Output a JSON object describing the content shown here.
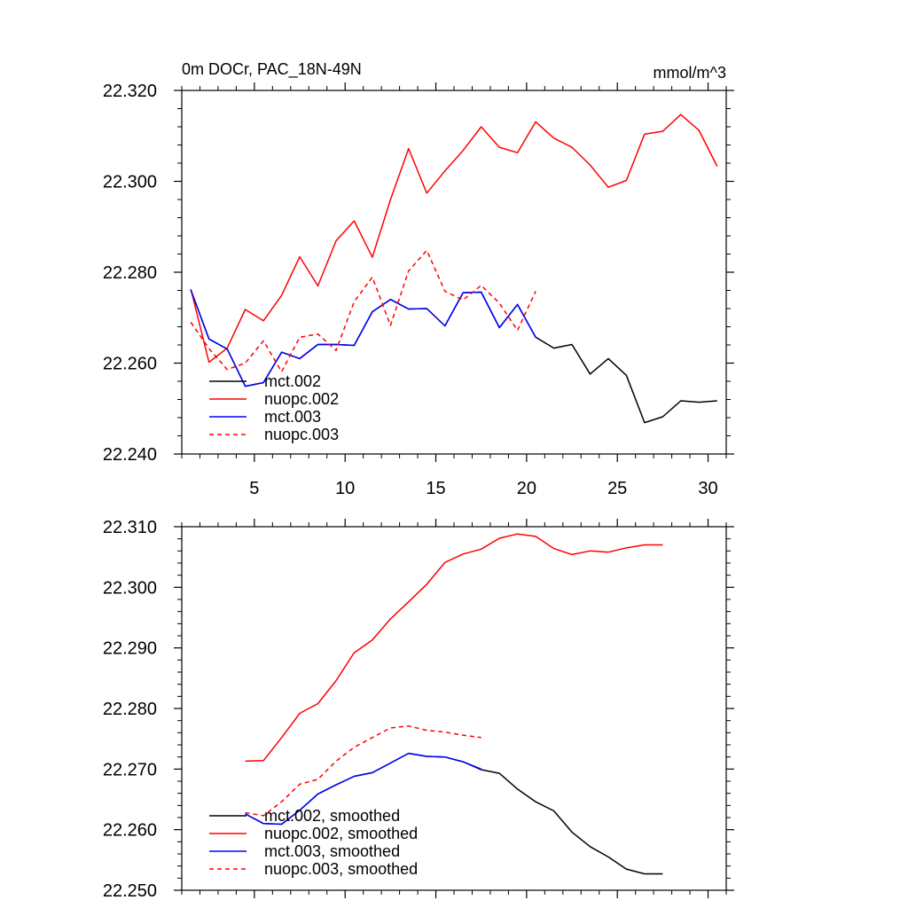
{
  "chart_data": [
    {
      "type": "line",
      "title": "0m DOCr, PAC_18N-49N",
      "units": "mmol/m^3",
      "xlim": [
        1,
        31
      ],
      "ylim": [
        22.24,
        22.32
      ],
      "xticks": [
        "5",
        "10",
        "15",
        "20",
        "25",
        "30"
      ],
      "yticks": [
        "22.240",
        "22.260",
        "22.280",
        "22.300",
        "22.320"
      ],
      "legend_position": "bottom-left",
      "series": [
        {
          "name": "mct.002",
          "color": "#000000",
          "dash": "solid",
          "x": [
            1.5,
            2.5,
            3.5,
            4.5,
            5.5,
            6.5,
            7.5,
            8.5,
            9.5,
            10.5,
            11.5,
            12.5,
            13.5,
            14.5,
            15.5,
            16.5,
            17.5,
            18.5,
            19.5,
            20.5,
            21.5,
            22.5,
            23.5,
            24.5,
            25.5,
            26.5,
            27.5,
            28.5,
            29.5,
            30.5
          ],
          "values": [
            22.2761,
            22.2653,
            22.2631,
            22.2549,
            22.2557,
            22.2624,
            22.261,
            22.2641,
            22.2641,
            22.2639,
            22.2713,
            22.274,
            22.2719,
            22.272,
            22.2682,
            22.2755,
            22.2756,
            22.2678,
            22.2729,
            22.2657,
            22.2633,
            22.2641,
            22.2576,
            22.261,
            22.2573,
            22.2469,
            22.2482,
            22.2517,
            22.2514,
            22.2517
          ]
        },
        {
          "name": "nuopc.002",
          "color": "#ff0000",
          "dash": "solid",
          "x": [
            1.5,
            2.5,
            3.5,
            4.5,
            5.5,
            6.5,
            7.5,
            8.5,
            9.5,
            10.5,
            11.5,
            12.5,
            13.5,
            14.5,
            15.5,
            16.5,
            17.5,
            18.5,
            19.5,
            20.5,
            21.5,
            22.5,
            23.5,
            24.5,
            25.5,
            26.5,
            27.5,
            28.5,
            29.5,
            30.5
          ],
          "values": [
            22.2763,
            22.2602,
            22.2633,
            22.2718,
            22.2693,
            22.2749,
            22.2834,
            22.277,
            22.2869,
            22.2913,
            22.2833,
            22.296,
            22.3072,
            22.2974,
            22.3023,
            22.3068,
            22.312,
            22.3075,
            22.3063,
            22.3131,
            22.3095,
            22.3075,
            22.3036,
            22.2987,
            22.3002,
            22.3104,
            22.311,
            22.3147,
            22.3112,
            22.3033
          ]
        },
        {
          "name": "mct.003",
          "color": "#0000ff",
          "dash": "solid",
          "x": [
            1.5,
            2.5,
            3.5,
            4.5,
            5.5,
            6.5,
            7.5,
            8.5,
            9.5,
            10.5,
            11.5,
            12.5,
            13.5,
            14.5,
            15.5,
            16.5,
            17.5,
            18.5,
            19.5,
            20.5
          ],
          "values": [
            22.2761,
            22.2653,
            22.2631,
            22.2549,
            22.2557,
            22.2624,
            22.261,
            22.2641,
            22.2641,
            22.2639,
            22.2713,
            22.274,
            22.2719,
            22.272,
            22.2682,
            22.2755,
            22.2756,
            22.2678,
            22.2729,
            22.2657
          ]
        },
        {
          "name": "nuopc.003",
          "color": "#ff0000",
          "dash": "dashed",
          "x": [
            1.5,
            2.5,
            3.5,
            4.5,
            5.5,
            6.5,
            7.5,
            8.5,
            9.5,
            10.5,
            11.5,
            12.5,
            13.5,
            14.5,
            15.5,
            16.5,
            17.5,
            18.5,
            19.5,
            20.5
          ],
          "values": [
            22.269,
            22.2632,
            22.2586,
            22.26,
            22.2649,
            22.2581,
            22.2657,
            22.2664,
            22.2628,
            22.2735,
            22.2789,
            22.2683,
            22.2803,
            22.2848,
            22.2758,
            22.2739,
            22.2771,
            22.2732,
            22.2672,
            22.2758
          ]
        }
      ]
    },
    {
      "type": "line",
      "xlim": [
        1,
        31
      ],
      "ylim": [
        22.25,
        22.31
      ],
      "xticks": [
        "",
        "",
        "",
        "",
        "",
        ""
      ],
      "yticks": [
        "22.250",
        "22.260",
        "22.270",
        "22.280",
        "22.290",
        "22.300",
        "22.310"
      ],
      "legend_position": "bottom-left",
      "series": [
        {
          "name": "mct.002, smoothed",
          "color": "#000000",
          "dash": "solid",
          "x": [
            4.5,
            5.5,
            6.5,
            7.5,
            8.5,
            9.5,
            10.5,
            11.5,
            12.5,
            13.5,
            14.5,
            15.5,
            16.5,
            17.5,
            18.5,
            19.5,
            20.5,
            21.5,
            22.5,
            23.5,
            24.5,
            25.5,
            26.5,
            27.5
          ],
          "values": [
            22.2626,
            22.261,
            22.2609,
            22.2632,
            22.2659,
            22.2674,
            22.2688,
            22.2694,
            22.271,
            22.2726,
            22.2721,
            22.272,
            22.2712,
            22.2699,
            22.2693,
            22.2667,
            22.2646,
            22.2631,
            22.2596,
            22.2572,
            22.2555,
            22.2535,
            22.2527,
            22.2527
          ]
        },
        {
          "name": "nuopc.002, smoothed",
          "color": "#ff0000",
          "dash": "solid",
          "x": [
            4.5,
            5.5,
            6.5,
            7.5,
            8.5,
            9.5,
            10.5,
            11.5,
            12.5,
            13.5,
            14.5,
            15.5,
            16.5,
            17.5,
            18.5,
            19.5,
            20.5,
            21.5,
            22.5,
            23.5,
            24.5,
            25.5,
            26.5,
            27.5
          ],
          "values": [
            22.2713,
            22.2714,
            22.2752,
            22.2792,
            22.2808,
            22.2846,
            22.2892,
            22.2913,
            22.2948,
            22.2976,
            22.3005,
            22.3041,
            22.3055,
            22.3063,
            22.3081,
            22.3088,
            22.3084,
            22.3064,
            22.3054,
            22.306,
            22.3058,
            22.3065,
            22.307,
            22.307
          ]
        },
        {
          "name": "mct.003, smoothed",
          "color": "#0000ff",
          "dash": "solid",
          "x": [
            4.5,
            5.5,
            6.5,
            7.5,
            8.5,
            9.5,
            10.5,
            11.5,
            12.5,
            13.5,
            14.5,
            15.5,
            16.5,
            17.5
          ],
          "values": [
            22.2626,
            22.261,
            22.2609,
            22.2632,
            22.2659,
            22.2674,
            22.2688,
            22.2694,
            22.271,
            22.2726,
            22.2721,
            22.272,
            22.2712,
            22.27
          ]
        },
        {
          "name": "nuopc.003, smoothed",
          "color": "#ff0000",
          "dash": "dashed",
          "x": [
            4.5,
            5.5,
            6.5,
            7.5,
            8.5,
            9.5,
            10.5,
            11.5,
            12.5,
            13.5,
            14.5,
            15.5,
            16.5,
            17.5
          ],
          "values": [
            22.2628,
            22.2623,
            22.2646,
            22.2675,
            22.2683,
            22.2713,
            22.2736,
            22.2752,
            22.2768,
            22.2771,
            22.2764,
            22.2761,
            22.2756,
            22.2752
          ]
        }
      ]
    }
  ]
}
